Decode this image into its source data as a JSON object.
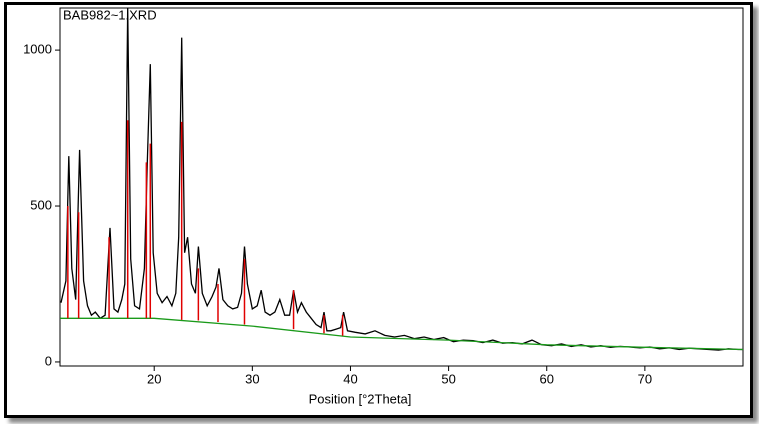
{
  "chart_data": {
    "type": "line",
    "title": "BAB982~1.XRD",
    "x_label": "Position [°2Theta]",
    "xlim": [
      10.4,
      80
    ],
    "ylim": [
      -13,
      1135
    ],
    "xticks": [
      20,
      30,
      40,
      50,
      60,
      70
    ],
    "yticks": [
      0,
      500,
      1000
    ],
    "series": [
      {
        "color": "#000000",
        "style": "line",
        "x": [
          10.5,
          11.0,
          11.3,
          11.6,
          12.0,
          12.4,
          12.8,
          13.2,
          13.6,
          14.0,
          14.5,
          15.0,
          15.5,
          15.9,
          16.3,
          16.7,
          17.0,
          17.3,
          17.6,
          18.0,
          18.5,
          19.0,
          19.3,
          19.6,
          19.9,
          20.3,
          20.8,
          21.3,
          21.8,
          22.2,
          22.5,
          22.8,
          23.1,
          23.4,
          23.8,
          24.2,
          24.5,
          24.9,
          25.4,
          25.9,
          26.3,
          26.6,
          27.0,
          27.5,
          28.0,
          28.5,
          28.9,
          29.2,
          29.5,
          30.0,
          30.5,
          30.9,
          31.3,
          31.8,
          32.3,
          32.8,
          33.3,
          33.8,
          34.2,
          34.6,
          35.0,
          35.5,
          36.0,
          36.5,
          37.0,
          37.3,
          37.6,
          38.0,
          38.5,
          39.0,
          39.3,
          39.7,
          40.5,
          41.5,
          42.5,
          43.5,
          44.5,
          45.5,
          46.5,
          47.5,
          48.5,
          49.5,
          50.5,
          51.5,
          52.5,
          53.5,
          54.5,
          55.5,
          56.5,
          57.5,
          58.5,
          59.5,
          60.5,
          61.5,
          62.5,
          63.5,
          64.5,
          65.5,
          66.5,
          67.5,
          68.5,
          69.5,
          70.5,
          71.5,
          72.5,
          73.5,
          74.5,
          75.5,
          76.5,
          77.5,
          78.5,
          79.5,
          80
        ],
        "values": [
          190,
          260,
          660,
          300,
          200,
          680,
          260,
          180,
          150,
          160,
          140,
          150,
          430,
          170,
          160,
          200,
          250,
          1135,
          330,
          180,
          170,
          300,
          640,
          955,
          350,
          220,
          190,
          210,
          180,
          220,
          400,
          1040,
          350,
          400,
          250,
          220,
          370,
          220,
          180,
          210,
          240,
          300,
          200,
          180,
          170,
          175,
          220,
          370,
          250,
          170,
          180,
          230,
          160,
          150,
          160,
          200,
          150,
          150,
          230,
          160,
          190,
          160,
          140,
          120,
          110,
          160,
          100,
          100,
          105,
          110,
          160,
          100,
          95,
          90,
          100,
          85,
          80,
          85,
          75,
          80,
          72,
          78,
          65,
          70,
          68,
          62,
          70,
          60,
          62,
          58,
          70,
          55,
          52,
          58,
          50,
          55,
          48,
          52,
          47,
          50,
          48,
          45,
          48,
          42,
          45,
          40,
          44,
          42,
          40,
          38,
          42,
          40,
          40
        ]
      },
      {
        "color": "#1a9a1a",
        "style": "line",
        "x": [
          10.4,
          20,
          30,
          40,
          50,
          60,
          70,
          80
        ],
        "values": [
          140,
          140,
          115,
          80,
          70,
          55,
          47,
          40
        ]
      },
      {
        "color": "#e00000",
        "style": "stem",
        "x": [
          11.2,
          12.3,
          15.4,
          17.3,
          19.2,
          19.6,
          22.8,
          24.5,
          26.5,
          29.2,
          34.2,
          37.3,
          39.2
        ],
        "base": [
          140,
          140,
          140,
          140,
          140,
          140,
          135,
          133,
          128,
          120,
          105,
          92,
          84
        ],
        "values": [
          500,
          480,
          400,
          775,
          640,
          700,
          770,
          300,
          250,
          330,
          230,
          150,
          150
        ]
      }
    ]
  }
}
